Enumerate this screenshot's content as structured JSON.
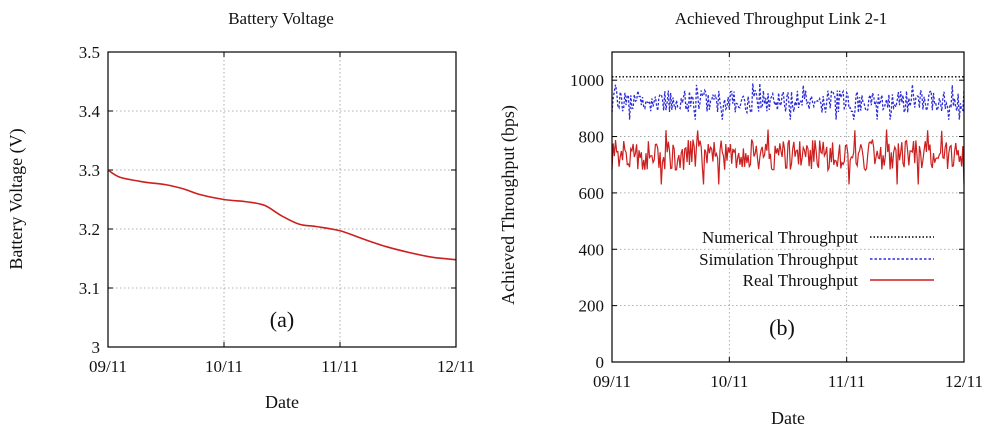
{
  "chart_data": [
    {
      "id": "a",
      "type": "line",
      "title": "Battery Voltage",
      "xlabel": "Date",
      "ylabel": "Battery Voltage (V)",
      "panel_label": "(a)",
      "xlim": [
        0,
        3
      ],
      "ylim": [
        3.0,
        3.5
      ],
      "x_ticks": [
        {
          "value": 0,
          "label": "09/11"
        },
        {
          "value": 1,
          "label": "10/11"
        },
        {
          "value": 2,
          "label": "11/11"
        },
        {
          "value": 3,
          "label": "12/11"
        }
      ],
      "y_ticks": [
        {
          "value": 3.0,
          "label": "3"
        },
        {
          "value": 3.1,
          "label": "3.1"
        },
        {
          "value": 3.2,
          "label": "3.2"
        },
        {
          "value": 3.3,
          "label": "3.3"
        },
        {
          "value": 3.4,
          "label": "3.4"
        },
        {
          "value": 3.5,
          "label": "3.5"
        }
      ],
      "grid": true,
      "series": [
        {
          "name": "Battery Voltage",
          "color": "#cc1f1f",
          "x": [
            0,
            0.1,
            0.3,
            0.5,
            0.65,
            0.8,
            1.0,
            1.2,
            1.35,
            1.5,
            1.65,
            1.8,
            2.0,
            2.2,
            2.4,
            2.6,
            2.8,
            3.0
          ],
          "y": [
            3.3,
            3.288,
            3.28,
            3.275,
            3.268,
            3.258,
            3.25,
            3.246,
            3.24,
            3.222,
            3.208,
            3.204,
            3.197,
            3.183,
            3.17,
            3.16,
            3.152,
            3.148
          ]
        }
      ]
    },
    {
      "id": "b",
      "type": "line",
      "title": "Achieved Throughput Link 2-1",
      "xlabel": "Date",
      "ylabel": "Achieved Throughput (bps)",
      "panel_label": "(b)",
      "xlim": [
        0,
        3
      ],
      "ylim": [
        0,
        1100
      ],
      "x_ticks": [
        {
          "value": 0,
          "label": "09/11"
        },
        {
          "value": 1,
          "label": "10/11"
        },
        {
          "value": 2,
          "label": "11/11"
        },
        {
          "value": 3,
          "label": "12/11"
        }
      ],
      "y_ticks": [
        {
          "value": 0,
          "label": "0"
        },
        {
          "value": 200,
          "label": "200"
        },
        {
          "value": 400,
          "label": "400"
        },
        {
          "value": 600,
          "label": "600"
        },
        {
          "value": 800,
          "label": "800"
        },
        {
          "value": 1000,
          "label": "1000"
        }
      ],
      "grid": true,
      "legend_position": "center-right",
      "series": [
        {
          "name": "Numerical Throughput",
          "color": "#000000",
          "style": "dotted",
          "mean": 1012,
          "amplitude": 0
        },
        {
          "name": "Simulation Throughput",
          "color": "#2b2bd9",
          "style": "dashed",
          "mean": 925,
          "amplitude": 40,
          "min": 860,
          "max": 990
        },
        {
          "name": "Real Throughput",
          "color": "#cc1f1f",
          "style": "solid",
          "mean": 735,
          "amplitude": 55,
          "min": 630,
          "max": 830
        }
      ]
    }
  ]
}
